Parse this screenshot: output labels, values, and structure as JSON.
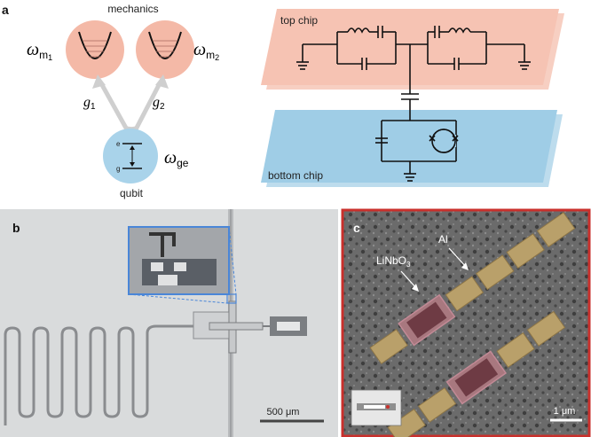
{
  "panels": {
    "a": "a",
    "b": "b",
    "c": "c"
  },
  "panel_a_left": {
    "mechanics_label": "mechanics",
    "omega_m1": "ω",
    "omega_m1_sub": "m",
    "omega_m1_subnum": "1",
    "omega_m2": "ω",
    "omega_m2_sub": "m",
    "omega_m2_subnum": "2",
    "g1": "g",
    "g1_sub": "1",
    "g2": "g",
    "g2_sub": "2",
    "omega_ge": "ω",
    "omega_ge_sub": "ge",
    "qubit_label": "qubit",
    "level_e": "e",
    "level_g": "g",
    "colors": {
      "mechanics": "#f4b9a7",
      "qubit": "#a9d3ea",
      "arrow": "#cfcfcf"
    }
  },
  "panel_a_right": {
    "top_chip_label": "top chip",
    "bottom_chip_label": "bottom chip",
    "colors": {
      "top_chip": "#f6c3b3",
      "bottom_chip": "#9fcde6"
    }
  },
  "panel_b": {
    "scale_bar_label": "500 μm",
    "colors": {
      "background": "#d9dbdc",
      "inset_border": "#4a86d8"
    }
  },
  "panel_c": {
    "label_al": "Al",
    "label_linbo3": "LiNbO",
    "label_linbo3_sub": "3",
    "scale_bar_label": "1 μm",
    "colors": {
      "border": "#c9302c",
      "al": "#b9a06a",
      "linbo3": "#a8787f"
    }
  }
}
